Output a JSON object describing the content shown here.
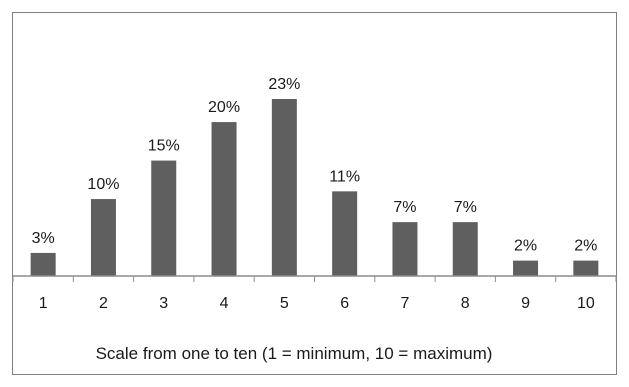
{
  "chart_data": {
    "type": "bar",
    "categories": [
      "1",
      "2",
      "3",
      "4",
      "5",
      "6",
      "7",
      "8",
      "9",
      "10"
    ],
    "values": [
      3,
      10,
      15,
      20,
      23,
      11,
      7,
      7,
      2,
      2
    ],
    "value_labels": [
      "3%",
      "10%",
      "15%",
      "20%",
      "23%",
      "11%",
      "7%",
      "7%",
      "2%",
      "2%"
    ],
    "title": "",
    "xlabel": "Scale from one to ten (1 = minimum, 10 = maximum)",
    "ylabel": "",
    "ylim": [
      0,
      23
    ],
    "grid": false,
    "bar_color": "#5f5f5f",
    "axis_color": "#8c8c8c",
    "frame_color": "#808080"
  }
}
